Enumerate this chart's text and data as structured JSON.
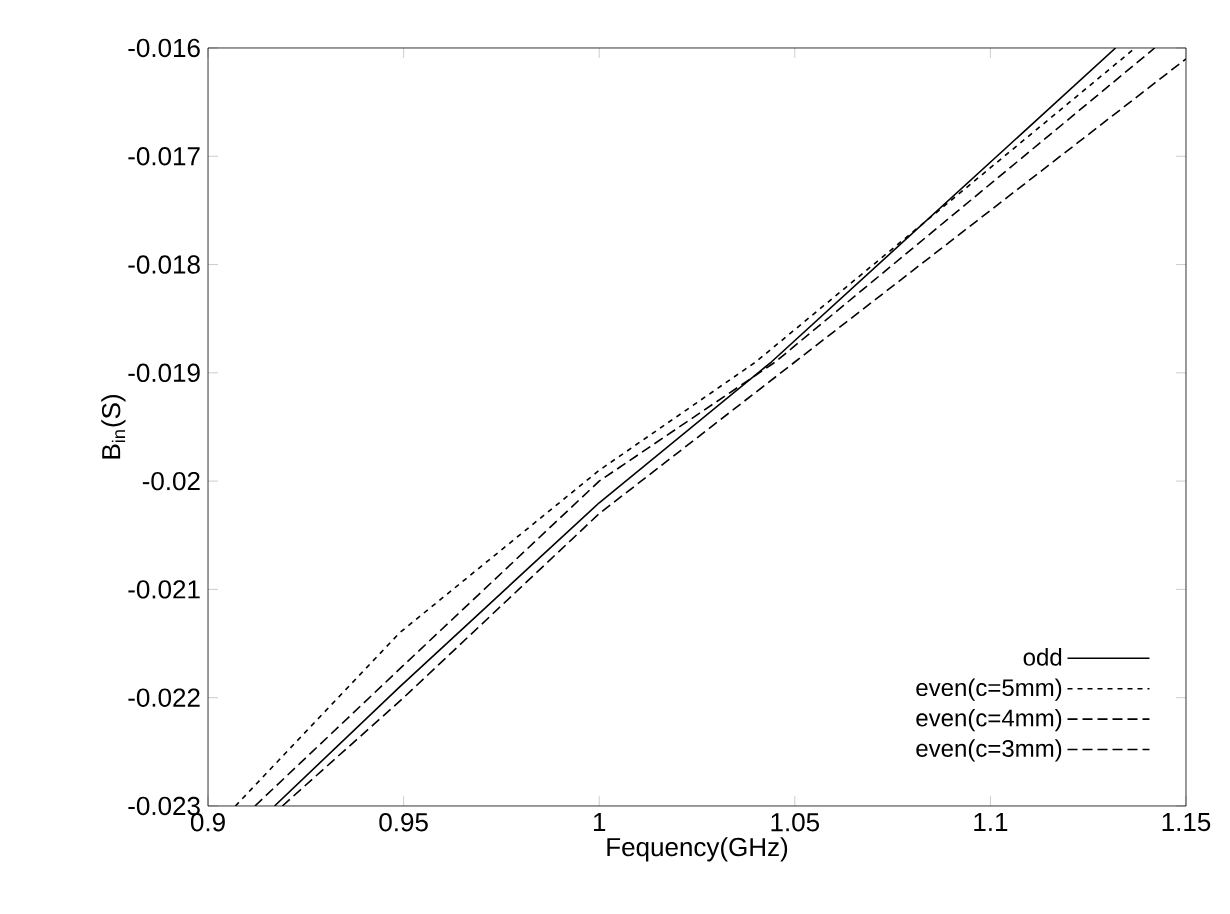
{
  "chart_data": {
    "type": "line",
    "xlabel": "Fequency(GHz)",
    "ylabel": "B$_{in}$(S)",
    "xlim": [
      0.9,
      1.15
    ],
    "ylim": [
      -0.023,
      -0.016
    ],
    "xticks": [
      0.9,
      0.95,
      1,
      1.05,
      1.1,
      1.15
    ],
    "yticks": [
      -0.023,
      -0.022,
      -0.021,
      -0.02,
      -0.019,
      -0.018,
      -0.017,
      -0.016
    ],
    "grid": false,
    "legend": "bottom right",
    "marker": "none",
    "series": [
      {
        "name": "odd",
        "color": "#000000",
        "line_style": "solid",
        "x": [
          0.917,
          0.949,
          1.0,
          1.044,
          1.132
        ],
        "values": [
          -0.023,
          -0.0219,
          -0.0202,
          -0.0189,
          -0.016
        ]
      },
      {
        "name": "even(c=5mm)",
        "color": "#000000",
        "line_style": "dotted",
        "x": [
          0.907,
          0.949,
          1.0,
          1.04,
          1.137
        ],
        "values": [
          -0.023,
          -0.0214,
          -0.0199,
          -0.0189,
          -0.016
        ]
      },
      {
        "name": "even(c=4mm)",
        "color": "#000000",
        "line_style": "dashed",
        "x": [
          0.912,
          0.95,
          1.0,
          1.045,
          1.142
        ],
        "values": [
          -0.023,
          -0.0217,
          -0.02,
          -0.0189,
          -0.016
        ]
      },
      {
        "name": "even(c=3mm)",
        "color": "#000000",
        "line_style": "dashed",
        "x": [
          0.919,
          0.95,
          1.0,
          1.05,
          1.15
        ],
        "values": [
          -0.023,
          -0.022,
          -0.0203,
          -0.0189,
          -0.0161
        ]
      }
    ]
  }
}
